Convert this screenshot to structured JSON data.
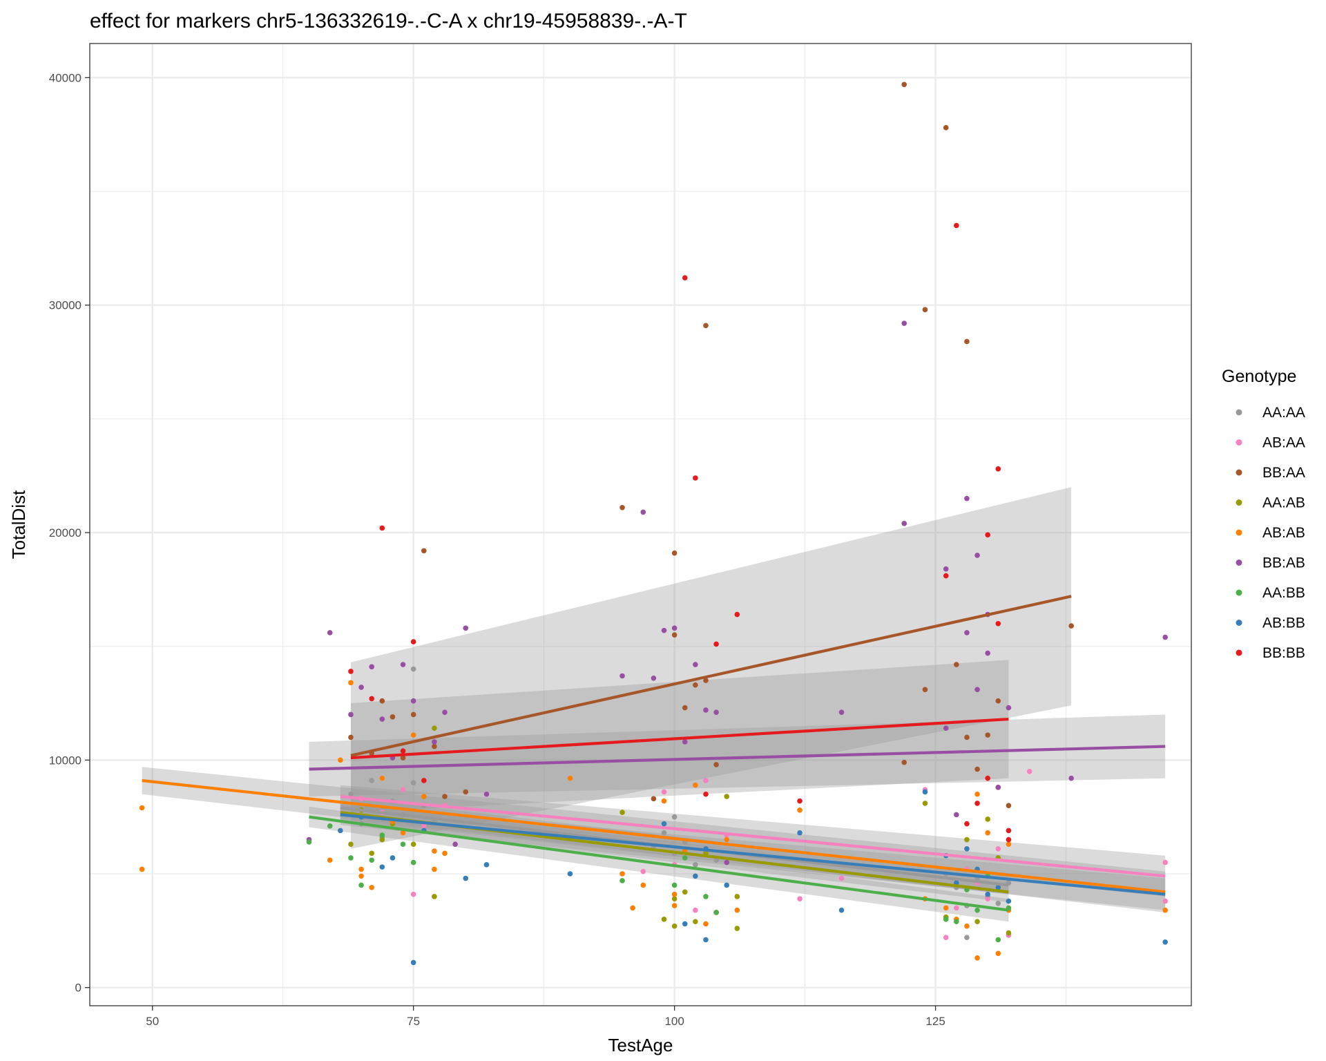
{
  "chart_data": {
    "type": "scatter",
    "title": "effect for markers chr5-136332619-.-C-A x chr19-45958839-.-A-T",
    "xlabel": "TestAge",
    "ylabel": "TotalDist",
    "xlim": [
      44,
      149.5
    ],
    "ylim": [
      -800,
      41500
    ],
    "x_ticks": [
      50,
      75,
      100,
      125
    ],
    "y_ticks": [
      0,
      10000,
      20000,
      30000,
      40000
    ],
    "grid": true,
    "legend": {
      "title": "Genotype",
      "position": "right"
    },
    "series": [
      {
        "name": "AA:AA",
        "color": "#999999",
        "fit": {
          "x": [
            68,
            132
          ],
          "y": [
            7900,
            4500
          ],
          "band": [
            500,
            400
          ]
        },
        "points": [
          [
            69,
            8500
          ],
          [
            70,
            7200
          ],
          [
            71,
            9100
          ],
          [
            72,
            6600
          ],
          [
            73,
            8200
          ],
          [
            74,
            7600
          ],
          [
            75,
            14000
          ],
          [
            75,
            9000
          ],
          [
            76,
            8000
          ],
          [
            77,
            7300
          ],
          [
            98,
            6200
          ],
          [
            99,
            6800
          ],
          [
            100,
            7500
          ],
          [
            100,
            5900
          ],
          [
            101,
            6400
          ],
          [
            102,
            5400
          ],
          [
            103,
            6000
          ],
          [
            104,
            5600
          ],
          [
            126,
            5000
          ],
          [
            127,
            4400
          ],
          [
            128,
            3600
          ],
          [
            129,
            4800
          ],
          [
            130,
            4000
          ],
          [
            131,
            3700
          ],
          [
            132,
            4600
          ],
          [
            128,
            2200
          ]
        ]
      },
      {
        "name": "AB:AA",
        "color": "#F781BF",
        "fit": {
          "x": [
            68,
            147
          ],
          "y": [
            8400,
            4900
          ],
          "band": [
            500,
            900
          ]
        },
        "points": [
          [
            70,
            8300
          ],
          [
            72,
            7700
          ],
          [
            74,
            8700
          ],
          [
            75,
            4100
          ],
          [
            76,
            7100
          ],
          [
            78,
            8000
          ],
          [
            97,
            5100
          ],
          [
            99,
            8600
          ],
          [
            100,
            5400
          ],
          [
            102,
            3400
          ],
          [
            103,
            9100
          ],
          [
            105,
            6700
          ],
          [
            112,
            3900
          ],
          [
            116,
            4800
          ],
          [
            124,
            8700
          ],
          [
            126,
            2200
          ],
          [
            127,
            3500
          ],
          [
            128,
            5200
          ],
          [
            129,
            4600
          ],
          [
            130,
            3900
          ],
          [
            131,
            6100
          ],
          [
            132,
            2300
          ],
          [
            134,
            9500
          ],
          [
            147,
            5500
          ],
          [
            147,
            3800
          ]
        ]
      },
      {
        "name": "BB:AA",
        "color": "#A65628",
        "fit": {
          "x": [
            69,
            138
          ],
          "y": [
            10200,
            17200
          ],
          "band": [
            4100,
            4800
          ]
        },
        "points": [
          [
            69,
            11000
          ],
          [
            71,
            10300
          ],
          [
            72,
            12600
          ],
          [
            73,
            11900
          ],
          [
            74,
            10100
          ],
          [
            75,
            12000
          ],
          [
            76,
            19200
          ],
          [
            77,
            10600
          ],
          [
            78,
            8400
          ],
          [
            80,
            8600
          ],
          [
            95,
            21100
          ],
          [
            98,
            8300
          ],
          [
            100,
            19100
          ],
          [
            100,
            15500
          ],
          [
            101,
            12300
          ],
          [
            102,
            13300
          ],
          [
            103,
            29100
          ],
          [
            103,
            13500
          ],
          [
            104,
            9800
          ],
          [
            122,
            39700
          ],
          [
            122,
            9900
          ],
          [
            124,
            29800
          ],
          [
            124,
            13100
          ],
          [
            126,
            37800
          ],
          [
            127,
            14200
          ],
          [
            128,
            28400
          ],
          [
            128,
            11000
          ],
          [
            129,
            9600
          ],
          [
            130,
            11100
          ],
          [
            131,
            12600
          ],
          [
            132,
            8000
          ],
          [
            138,
            15900
          ]
        ]
      },
      {
        "name": "AA:AB",
        "color": "#999900",
        "fit": {
          "x": [
            68,
            132
          ],
          "y": [
            7700,
            4200
          ],
          "band": [
            450,
            450
          ]
        },
        "points": [
          [
            69,
            6300
          ],
          [
            70,
            7800
          ],
          [
            71,
            5900
          ],
          [
            72,
            6500
          ],
          [
            73,
            7200
          ],
          [
            75,
            6300
          ],
          [
            77,
            11400
          ],
          [
            77,
            4000
          ],
          [
            95,
            7700
          ],
          [
            99,
            3000
          ],
          [
            100,
            3900
          ],
          [
            100,
            2700
          ],
          [
            101,
            4200
          ],
          [
            102,
            2900
          ],
          [
            103,
            5900
          ],
          [
            104,
            3300
          ],
          [
            105,
            8400
          ],
          [
            106,
            2600
          ],
          [
            106,
            4000
          ],
          [
            124,
            8100
          ],
          [
            126,
            3100
          ],
          [
            128,
            6500
          ],
          [
            129,
            2900
          ],
          [
            130,
            7400
          ],
          [
            131,
            5700
          ],
          [
            132,
            2400
          ]
        ]
      },
      {
        "name": "AB:AB",
        "color": "#FF7F00",
        "fit": {
          "x": [
            49,
            147
          ],
          "y": [
            9100,
            4200
          ],
          "band": [
            600,
            900
          ]
        },
        "points": [
          [
            49,
            7900
          ],
          [
            49,
            5200
          ],
          [
            67,
            5600
          ],
          [
            68,
            10000
          ],
          [
            69,
            13400
          ],
          [
            70,
            5200
          ],
          [
            70,
            4900
          ],
          [
            71,
            4400
          ],
          [
            72,
            9200
          ],
          [
            73,
            7300
          ],
          [
            74,
            6800
          ],
          [
            75,
            11100
          ],
          [
            76,
            8400
          ],
          [
            77,
            6000
          ],
          [
            77,
            5200
          ],
          [
            78,
            5900
          ],
          [
            90,
            9200
          ],
          [
            95,
            5000
          ],
          [
            96,
            3500
          ],
          [
            97,
            4500
          ],
          [
            99,
            8200
          ],
          [
            100,
            3600
          ],
          [
            100,
            4100
          ],
          [
            101,
            6000
          ],
          [
            102,
            8900
          ],
          [
            103,
            2800
          ],
          [
            104,
            3300
          ],
          [
            105,
            6500
          ],
          [
            106,
            3400
          ],
          [
            112,
            7800
          ],
          [
            124,
            3900
          ],
          [
            126,
            3500
          ],
          [
            127,
            3000
          ],
          [
            128,
            2700
          ],
          [
            129,
            1300
          ],
          [
            129,
            8500
          ],
          [
            130,
            6800
          ],
          [
            131,
            1500
          ],
          [
            131,
            8800
          ],
          [
            132,
            3400
          ],
          [
            132,
            6300
          ],
          [
            147,
            3400
          ]
        ]
      },
      {
        "name": "BB:AB",
        "color": "#984EA3",
        "fit": {
          "x": [
            65,
            147
          ],
          "y": [
            9600,
            10600
          ],
          "band": [
            1200,
            1400
          ]
        },
        "points": [
          [
            65,
            6500
          ],
          [
            67,
            15600
          ],
          [
            69,
            12000
          ],
          [
            70,
            13200
          ],
          [
            71,
            14100
          ],
          [
            72,
            11800
          ],
          [
            73,
            10100
          ],
          [
            74,
            14200
          ],
          [
            75,
            12600
          ],
          [
            77,
            10800
          ],
          [
            78,
            12100
          ],
          [
            79,
            6300
          ],
          [
            80,
            15800
          ],
          [
            82,
            8500
          ],
          [
            95,
            13700
          ],
          [
            97,
            20900
          ],
          [
            98,
            13600
          ],
          [
            99,
            15700
          ],
          [
            100,
            15800
          ],
          [
            101,
            10800
          ],
          [
            102,
            14200
          ],
          [
            103,
            12200
          ],
          [
            104,
            12100
          ],
          [
            105,
            5500
          ],
          [
            116,
            12100
          ],
          [
            122,
            29200
          ],
          [
            122,
            20400
          ],
          [
            126,
            18400
          ],
          [
            126,
            11400
          ],
          [
            127,
            7600
          ],
          [
            128,
            21500
          ],
          [
            128,
            15600
          ],
          [
            129,
            19000
          ],
          [
            129,
            13100
          ],
          [
            130,
            16400
          ],
          [
            130,
            14700
          ],
          [
            131,
            8800
          ],
          [
            132,
            12300
          ],
          [
            138,
            9200
          ],
          [
            147,
            15400
          ]
        ]
      },
      {
        "name": "AA:BB",
        "color": "#4DAF4A",
        "fit": {
          "x": [
            65,
            132
          ],
          "y": [
            7500,
            3400
          ],
          "band": [
            450,
            500
          ]
        },
        "points": [
          [
            65,
            6400
          ],
          [
            67,
            7100
          ],
          [
            69,
            5700
          ],
          [
            70,
            4500
          ],
          [
            71,
            5600
          ],
          [
            72,
            6700
          ],
          [
            74,
            6300
          ],
          [
            75,
            5500
          ],
          [
            95,
            4700
          ],
          [
            100,
            4500
          ],
          [
            101,
            5700
          ],
          [
            103,
            4000
          ],
          [
            104,
            3300
          ],
          [
            126,
            3000
          ],
          [
            127,
            2900
          ],
          [
            128,
            4300
          ],
          [
            129,
            3400
          ],
          [
            130,
            4900
          ],
          [
            131,
            2100
          ],
          [
            132,
            3500
          ]
        ]
      },
      {
        "name": "AB:BB",
        "color": "#377EB8",
        "fit": {
          "x": [
            68,
            147
          ],
          "y": [
            7600,
            4100
          ],
          "band": [
            450,
            700
          ]
        },
        "points": [
          [
            68,
            6900
          ],
          [
            70,
            7500
          ],
          [
            72,
            5300
          ],
          [
            73,
            5700
          ],
          [
            75,
            1100
          ],
          [
            76,
            6900
          ],
          [
            80,
            4800
          ],
          [
            82,
            5400
          ],
          [
            90,
            5000
          ],
          [
            99,
            7200
          ],
          [
            101,
            2800
          ],
          [
            102,
            4900
          ],
          [
            103,
            2100
          ],
          [
            103,
            6100
          ],
          [
            105,
            4500
          ],
          [
            112,
            6800
          ],
          [
            116,
            3400
          ],
          [
            124,
            8600
          ],
          [
            126,
            5800
          ],
          [
            127,
            4600
          ],
          [
            128,
            6100
          ],
          [
            129,
            5200
          ],
          [
            130,
            4100
          ],
          [
            131,
            4400
          ],
          [
            132,
            3800
          ],
          [
            147,
            2000
          ]
        ]
      },
      {
        "name": "BB:BB",
        "color": "#E41A1C",
        "fit": {
          "x": [
            69,
            132
          ],
          "y": [
            10100,
            11800
          ],
          "band": [
            2400,
            2600
          ]
        },
        "points": [
          [
            69,
            13900
          ],
          [
            71,
            12700
          ],
          [
            72,
            20200
          ],
          [
            74,
            10400
          ],
          [
            75,
            15200
          ],
          [
            76,
            9100
          ],
          [
            101,
            31200
          ],
          [
            102,
            22400
          ],
          [
            103,
            8500
          ],
          [
            104,
            15100
          ],
          [
            106,
            16400
          ],
          [
            112,
            8200
          ],
          [
            126,
            18100
          ],
          [
            127,
            33500
          ],
          [
            128,
            7200
          ],
          [
            129,
            8100
          ],
          [
            130,
            19900
          ],
          [
            130,
            9200
          ],
          [
            131,
            22800
          ],
          [
            131,
            16000
          ],
          [
            132,
            6900
          ],
          [
            132,
            6500
          ]
        ]
      }
    ]
  }
}
